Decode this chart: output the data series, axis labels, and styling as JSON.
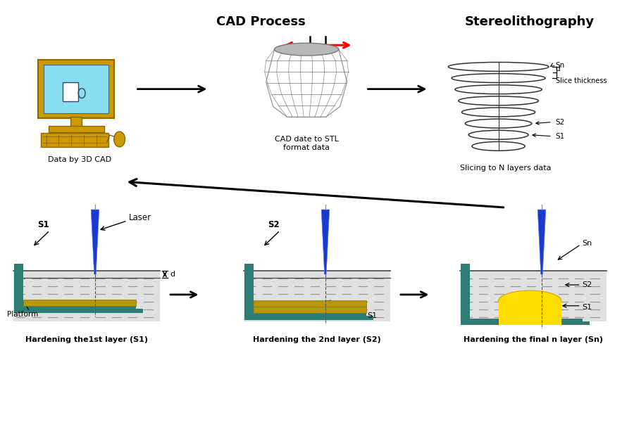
{
  "bg_color": "#ffffff",
  "colors": {
    "teal": "#2e7d74",
    "teal_dark": "#1a5550",
    "yellow_gold": "#b8960a",
    "bright_yellow": "#ffdd00",
    "yellow_light": "#ffe566",
    "blue_laser": "#1a3acc",
    "blue_light": "#5577ff",
    "computer_yellow": "#d4a800",
    "computer_body": "#cc9900",
    "screen_blue": "#88ddee",
    "gray_mesh": "#888888",
    "liquid_bg": "#d8d8d8",
    "liquid_line": "#aaaaaa",
    "arrow_black": "#111111",
    "red": "#cc0000"
  },
  "top_labels": {
    "cad_process": "CAD Process",
    "stereolithography": "Stereolithography",
    "label1": "Data by 3D CAD",
    "label2": "CAD date to STL\nformat data",
    "label3": "Slicing to N layers data"
  },
  "bottom_labels": {
    "label1": "Hardening the1st layer (S1)",
    "label2": "Hardening the 2nd layer (S2)",
    "label3": "Hardening the final n layer (Sn)"
  }
}
